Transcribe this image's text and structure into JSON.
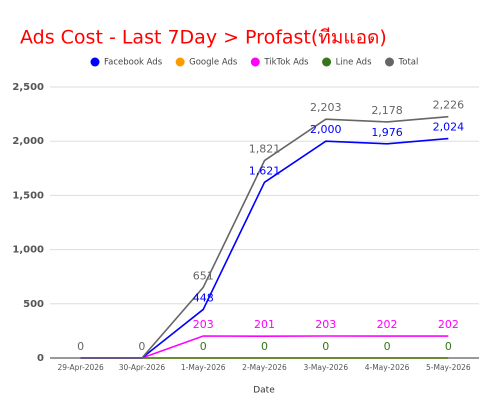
{
  "chart_data": {
    "type": "line",
    "title": "Ads Cost - Last 7Day > Profast(ทีมแอด)",
    "x_label": "Date",
    "categories": [
      "29-Apr-2026",
      "30-Apr-2026",
      "1-May-2026",
      "2-May-2026",
      "3-May-2026",
      "4-May-2026",
      "5-May-2026"
    ],
    "series": [
      {
        "name": "Facebook Ads",
        "color": "#0000ff",
        "values": [
          0,
          0,
          448,
          1621,
          2000,
          1976,
          2024
        ],
        "value_labels": [
          null,
          null,
          "448",
          "1,621",
          "2,000",
          "1,976",
          "2,024"
        ]
      },
      {
        "name": "Google Ads",
        "color": "#ff9900",
        "values": [
          0,
          0,
          0,
          0,
          0,
          0,
          0
        ]
      },
      {
        "name": "TikTok Ads",
        "color": "#ff00ff",
        "values": [
          0,
          0,
          203,
          201,
          203,
          202,
          202
        ],
        "value_labels": [
          null,
          null,
          "203",
          "201",
          "203",
          "202",
          "202"
        ]
      },
      {
        "name": "Line Ads",
        "color": "#38761d",
        "values": [
          0,
          0,
          0,
          0,
          0,
          0,
          0
        ],
        "value_labels": [
          null,
          null,
          "0",
          "0",
          "0",
          "0",
          "0"
        ]
      },
      {
        "name": "Total",
        "color": "#666666",
        "values": [
          0,
          0,
          651,
          1821,
          2203,
          2178,
          2226
        ],
        "value_labels": [
          "0",
          "0",
          "651",
          "1,821",
          "2,203",
          "2,178",
          "2,226"
        ]
      }
    ],
    "ylim": [
      0,
      2500
    ],
    "yticks": [
      0,
      500,
      {
        "value": 1000,
        "label": "1,000"
      },
      {
        "value": 1500,
        "label": "1,500"
      },
      {
        "value": 2000,
        "label": "2,000"
      },
      {
        "value": 2500,
        "label": "2,500"
      }
    ],
    "grid": true,
    "legend": "top",
    "title_color": "#ff0000"
  }
}
